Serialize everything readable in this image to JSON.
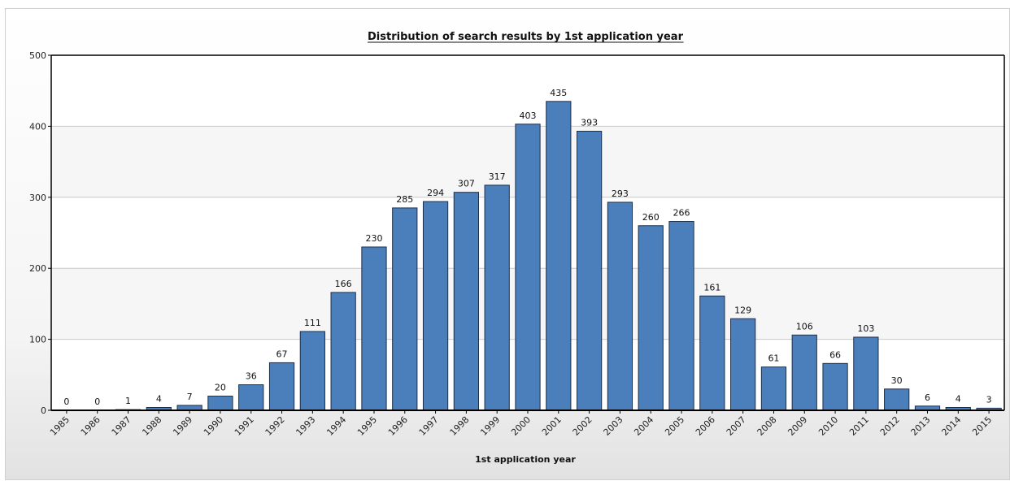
{
  "chart_data": {
    "type": "bar",
    "title": "Distribution of search results by 1st application year",
    "xlabel": "1st application year",
    "ylabel": "",
    "ylim": [
      0,
      500
    ],
    "yticks": [
      0,
      100,
      200,
      300,
      400,
      500
    ],
    "grid": true,
    "legend": "none",
    "bar_color": "#4a7fbb",
    "bar_edge_color": "#1f2f4a",
    "categories": [
      "1985",
      "1986",
      "1987",
      "1988",
      "1989",
      "1990",
      "1991",
      "1992",
      "1993",
      "1994",
      "1995",
      "1996",
      "1997",
      "1998",
      "1999",
      "2000",
      "2001",
      "2002",
      "2003",
      "2004",
      "2005",
      "2006",
      "2007",
      "2008",
      "2009",
      "2010",
      "2011",
      "2012",
      "2013",
      "2014",
      "2015"
    ],
    "values": [
      0,
      0,
      1,
      4,
      7,
      20,
      36,
      67,
      111,
      166,
      230,
      285,
      294,
      307,
      317,
      403,
      435,
      393,
      293,
      260,
      266,
      161,
      129,
      61,
      106,
      66,
      103,
      30,
      6,
      4,
      3
    ]
  }
}
